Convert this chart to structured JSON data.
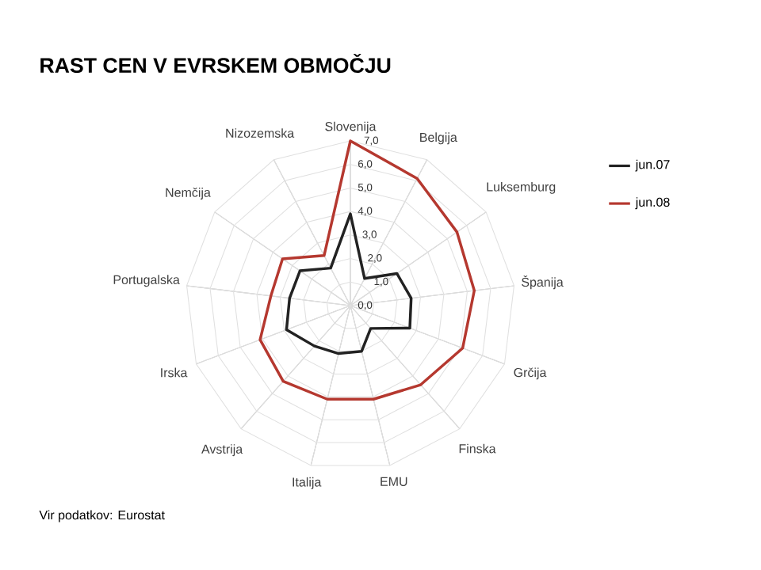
{
  "chart_data": {
    "type": "radar",
    "title": "RAST CEN V EVRSKEM OBMOČJU",
    "categories": [
      "Slovenija",
      "Belgija",
      "Luksemburg",
      "Španija",
      "Grčija",
      "Finska",
      "EMU",
      "Italija",
      "Avstrija",
      "Irska",
      "Portugalska",
      "Nemčija",
      "Nizozemska"
    ],
    "series": [
      {
        "name": "jun.07",
        "color": "#222222",
        "values": [
          3.9,
          1.3,
          2.4,
          2.6,
          2.7,
          1.3,
          2.0,
          2.1,
          2.3,
          2.9,
          2.6,
          2.6,
          1.8
        ]
      },
      {
        "name": "jun.08",
        "color": "#b5382f",
        "values": [
          7.0,
          6.1,
          5.5,
          5.3,
          5.1,
          4.5,
          4.1,
          4.1,
          4.3,
          4.1,
          3.4,
          3.5,
          2.4
        ]
      }
    ],
    "ylim": [
      0,
      7
    ],
    "yticks": [
      {
        "value": 0,
        "label": "0,0"
      },
      {
        "value": 1,
        "label": "1,0"
      },
      {
        "value": 2,
        "label": "2,0"
      },
      {
        "value": 3,
        "label": "3,0"
      },
      {
        "value": 4,
        "label": "4,0"
      },
      {
        "value": 5,
        "label": "5,0"
      },
      {
        "value": 6,
        "label": "6,0"
      },
      {
        "value": 7,
        "label": "7,0"
      }
    ],
    "grid": true,
    "legend": "right",
    "annotations": [
      "Vir podatkov: Eurostat"
    ]
  }
}
